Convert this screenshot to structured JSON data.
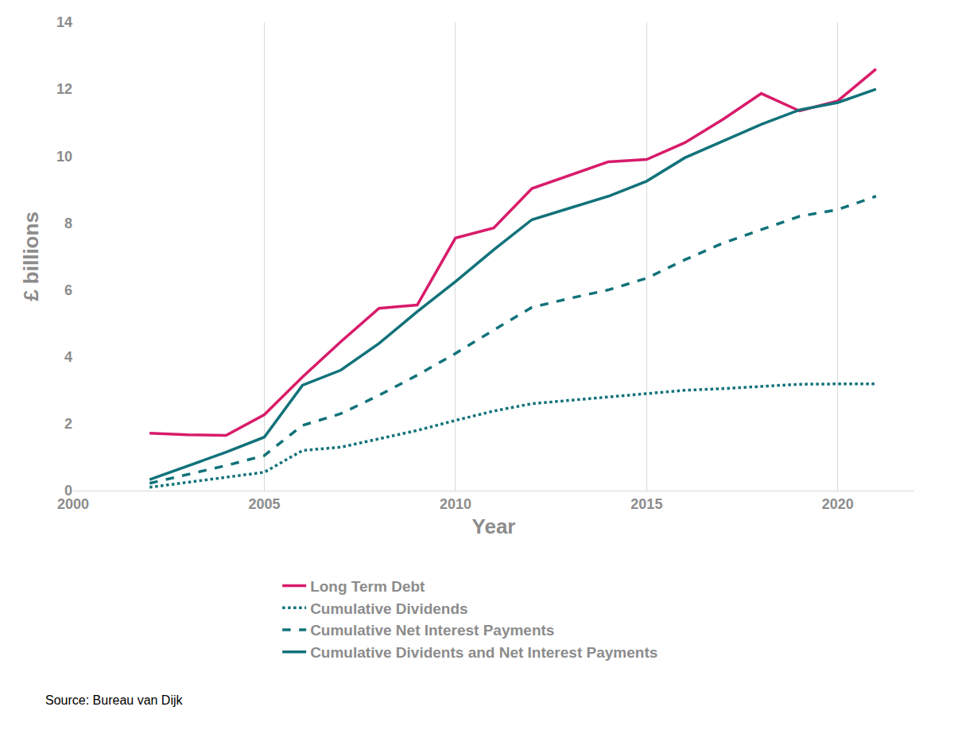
{
  "chart_data": {
    "type": "line",
    "x": [
      2002,
      2003,
      2004,
      2005,
      2006,
      2007,
      2008,
      2009,
      2010,
      2011,
      2012,
      2013,
      2014,
      2015,
      2016,
      2017,
      2018,
      2019,
      2020,
      2021
    ],
    "series": [
      {
        "name": "Long Term Debt",
        "color": "#d81b6a",
        "line_style": "solid",
        "values": [
          1.72,
          1.67,
          1.65,
          2.27,
          3.4,
          4.45,
          5.45,
          5.55,
          7.55,
          7.85,
          9.03,
          9.43,
          9.83,
          9.9,
          10.4,
          11.1,
          11.87,
          11.35,
          11.65,
          12.6
        ]
      },
      {
        "name": "Cumulative Dividends",
        "color": "#11727a",
        "line_style": "dot",
        "values": [
          0.1,
          0.25,
          0.4,
          0.55,
          1.2,
          1.3,
          1.55,
          1.8,
          2.1,
          2.38,
          2.6,
          2.7,
          2.78,
          2.88,
          3.0,
          3.05,
          3.12,
          3.18,
          3.19,
          3.19
        ]
      },
      {
        "name": "Cumulative Net Interest Payments",
        "color": "#11727a",
        "line_style": "dash",
        "values": [
          0.22,
          0.48,
          0.75,
          1.05,
          1.95,
          2.3,
          2.85,
          3.45,
          4.1,
          4.8,
          5.48,
          5.75,
          6.0,
          6.35,
          6.9,
          7.4,
          7.8,
          8.2,
          8.4,
          8.8
        ]
      },
      {
        "name": "Cumulative Dividents and Net Interest Payments",
        "color": "#11727a",
        "line_style": "solid",
        "values": [
          0.33,
          0.73,
          1.15,
          1.6,
          3.15,
          3.6,
          4.4,
          5.35,
          6.25,
          7.2,
          8.1,
          8.45,
          8.8,
          9.25,
          9.95,
          10.45,
          10.95,
          11.38,
          11.6,
          12.0
        ]
      }
    ],
    "x_label": "Year",
    "y_label": "£ billions",
    "xlim": [
      2000,
      2022
    ],
    "xticks": [
      2000,
      2005,
      2010,
      2015,
      2020
    ],
    "ylim": [
      0,
      14
    ],
    "yticks": [
      0,
      2,
      4,
      6,
      8,
      10,
      12,
      14
    ],
    "grid": "x",
    "legend": "bottom",
    "annotations": [
      {
        "text": "Source: Bureau van Dijk"
      }
    ]
  }
}
